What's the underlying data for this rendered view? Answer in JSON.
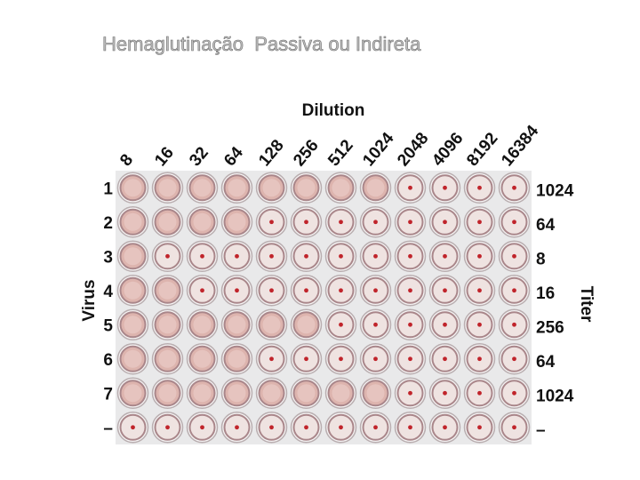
{
  "title": "Hemaglutinação  Passiva ou Indireta",
  "figure": {
    "heading": "Dilution",
    "dilutions": [
      "8",
      "16",
      "32",
      "64",
      "128",
      "256",
      "512",
      "1024",
      "2048",
      "4096",
      "8192",
      "16384"
    ],
    "rows": [
      "1",
      "2",
      "3",
      "4",
      "5",
      "6",
      "7",
      "–"
    ],
    "y_label": "Virus",
    "titer_label": "Titer",
    "titers": [
      "1024",
      "64",
      "8",
      "16",
      "256",
      "64",
      "1024",
      "–"
    ]
  }
}
